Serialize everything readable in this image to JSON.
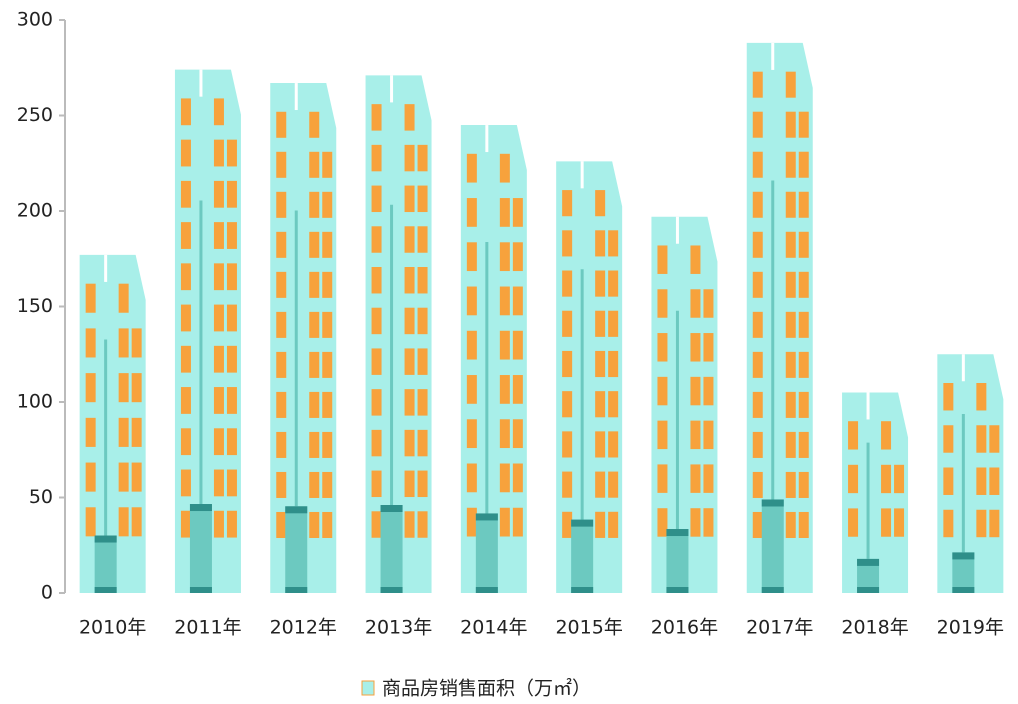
{
  "chart_data": {
    "type": "pictogram-bar",
    "categories": [
      "2010年",
      "2011年",
      "2012年",
      "2013年",
      "2014年",
      "2015年",
      "2016年",
      "2017年",
      "2018年",
      "2019年"
    ],
    "series": [
      {
        "name": "商品房销售面积（万㎡）",
        "color": "#a8efe9",
        "values": [
          177,
          274,
          267,
          271,
          245,
          226,
          197,
          288,
          105,
          125
        ]
      }
    ],
    "ylim": [
      0,
      300
    ],
    "yticks": [
      0,
      50,
      100,
      150,
      200,
      250,
      300
    ],
    "legend": "bottom"
  }
}
